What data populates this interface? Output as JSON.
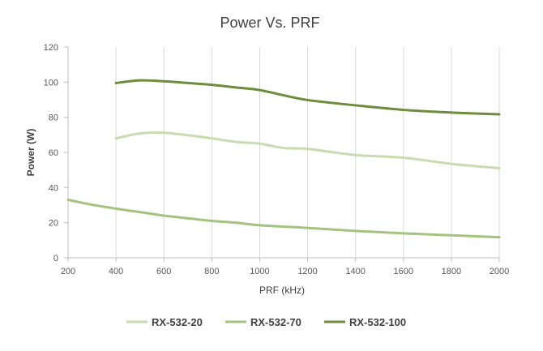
{
  "chart_data": {
    "type": "line",
    "title": "Power Vs. PRF",
    "xlabel": "PRF (kHz)",
    "ylabel": "Power (W)",
    "xlim": [
      200,
      2000
    ],
    "ylim": [
      0,
      120
    ],
    "xticks": [
      200,
      400,
      600,
      800,
      1000,
      1200,
      1400,
      1600,
      1800,
      2000
    ],
    "yticks": [
      0,
      20,
      40,
      60,
      80,
      100,
      120
    ],
    "grid": "vertical",
    "legend": "bottom",
    "series": [
      {
        "name": "RX-532-20",
        "color": "#c8dcb0",
        "points": [
          [
            400,
            68
          ],
          [
            500,
            70.8
          ],
          [
            600,
            71.2
          ],
          [
            700,
            69.8
          ],
          [
            800,
            68
          ],
          [
            900,
            66
          ],
          [
            1000,
            65
          ],
          [
            1100,
            62.5
          ],
          [
            1200,
            62
          ],
          [
            1400,
            58.5
          ],
          [
            1600,
            57
          ],
          [
            1800,
            53.5
          ],
          [
            2000,
            51
          ]
        ]
      },
      {
        "name": "RX-532-70",
        "color": "#a4c37e",
        "points": [
          [
            200,
            33
          ],
          [
            300,
            30.2
          ],
          [
            400,
            28
          ],
          [
            500,
            26
          ],
          [
            600,
            24
          ],
          [
            700,
            22.5
          ],
          [
            800,
            21
          ],
          [
            900,
            20
          ],
          [
            1000,
            18.5
          ],
          [
            1200,
            17
          ],
          [
            1400,
            15.3
          ],
          [
            1600,
            13.9
          ],
          [
            1800,
            12.8
          ],
          [
            2000,
            11.7
          ]
        ]
      },
      {
        "name": "RX-532-100",
        "color": "#6d8c3c",
        "points": [
          [
            400,
            99.5
          ],
          [
            500,
            101
          ],
          [
            600,
            100.5
          ],
          [
            700,
            99.5
          ],
          [
            800,
            98.5
          ],
          [
            900,
            97
          ],
          [
            1000,
            95.5
          ],
          [
            1100,
            92.5
          ],
          [
            1200,
            89.8
          ],
          [
            1400,
            86.8
          ],
          [
            1600,
            84.2
          ],
          [
            1800,
            82.7
          ],
          [
            2000,
            81.7
          ]
        ]
      }
    ]
  }
}
